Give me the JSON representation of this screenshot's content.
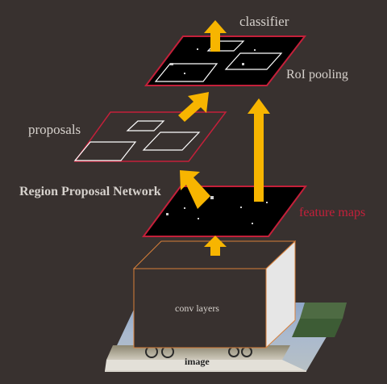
{
  "labels": {
    "classifier": "classifier",
    "roi_pooling": "RoI pooling",
    "proposals": "proposals",
    "rpn": "Region Proposal Network",
    "feature_maps": "feature maps",
    "conv_layers": "conv layers",
    "image": "image"
  },
  "colors": {
    "background": "#38312f",
    "map_fill": "#000000",
    "map_outline": "#c4203a",
    "arrow": "#f7b500",
    "box_outline": "#ffffff",
    "conv_outline": "#d9803a",
    "conv_front": "#38312f",
    "conv_side": "#e6e6e6",
    "feature_label": "#c4203a",
    "text": "#d6d1cc",
    "rpn_text": "#d6d1cc",
    "image_label": "#222222"
  }
}
